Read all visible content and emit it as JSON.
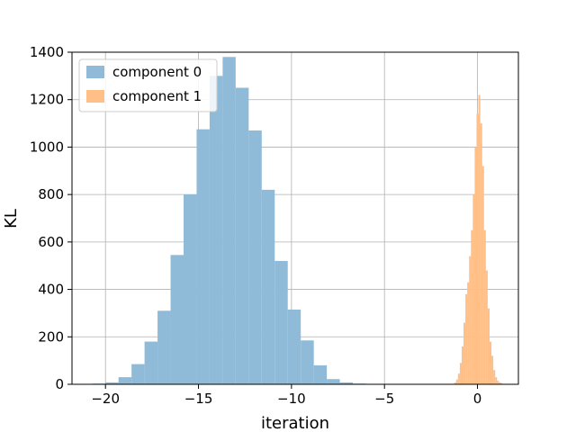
{
  "chart_data": {
    "type": "bar",
    "title": "",
    "xlabel": "iteration",
    "ylabel": "KL",
    "xlim": [
      -21.8,
      2.2
    ],
    "ylim": [
      0,
      1400
    ],
    "xticks": [
      -20,
      -15,
      -10,
      -5,
      0
    ],
    "xtick_labels": [
      "−20",
      "−15",
      "−10",
      "−5",
      "0"
    ],
    "yticks": [
      0,
      200,
      400,
      600,
      800,
      1000,
      1200,
      1400
    ],
    "ytick_labels": [
      "0",
      "200",
      "400",
      "600",
      "800",
      "1000",
      "1200",
      "1400"
    ],
    "grid": true,
    "legend_position": "top-left",
    "series": [
      {
        "name": "component 0",
        "color": "#8fbbd9",
        "bin_edges": [
          -20.7,
          -20.0,
          -19.3,
          -18.6,
          -17.9,
          -17.2,
          -16.5,
          -15.8,
          -15.1,
          -14.4,
          -13.7,
          -13.0,
          -12.3,
          -11.6,
          -10.9,
          -10.2,
          -9.5,
          -8.8,
          -8.1,
          -7.4,
          -6.7,
          -6.0
        ],
        "values": [
          3,
          8,
          30,
          85,
          180,
          310,
          545,
          800,
          1075,
          1300,
          1380,
          1250,
          1070,
          820,
          520,
          315,
          185,
          80,
          22,
          8,
          3
        ]
      },
      {
        "name": "component 1",
        "color": "#ffbf86",
        "bin_edges": [
          -1.25,
          -1.15,
          -1.05,
          -0.95,
          -0.85,
          -0.75,
          -0.65,
          -0.55,
          -0.45,
          -0.35,
          -0.25,
          -0.15,
          -0.05,
          0.05,
          0.15,
          0.25,
          0.35,
          0.45,
          0.55,
          0.65,
          0.75,
          0.85,
          0.95,
          1.05,
          1.15,
          1.25,
          1.35
        ],
        "values": [
          8,
          20,
          45,
          90,
          160,
          260,
          380,
          430,
          540,
          650,
          800,
          1000,
          1140,
          1220,
          1100,
          920,
          650,
          480,
          320,
          180,
          120,
          60,
          30,
          15,
          8,
          5
        ]
      }
    ]
  }
}
